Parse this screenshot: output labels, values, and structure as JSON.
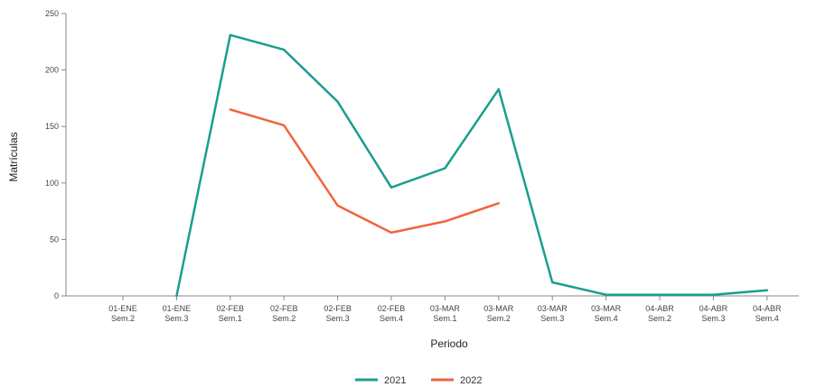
{
  "chart_data": {
    "type": "line",
    "xlabel": "Periodo",
    "ylabel": "Matrículas",
    "ylim": [
      0,
      250
    ],
    "yticks": [
      0,
      50,
      100,
      150,
      200,
      250
    ],
    "grid": false,
    "legend_position": "bottom-center",
    "categories": [
      [
        "01-ENE",
        "Sem.2"
      ],
      [
        "01-ENE",
        "Sem.3"
      ],
      [
        "02-FEB",
        "Sem.1"
      ],
      [
        "02-FEB",
        "Sem.2"
      ],
      [
        "02-FEB",
        "Sem.3"
      ],
      [
        "02-FEB",
        "Sem.4"
      ],
      [
        "03-MAR",
        "Sem.1"
      ],
      [
        "03-MAR",
        "Sem.2"
      ],
      [
        "03-MAR",
        "Sem.3"
      ],
      [
        "03-MAR",
        "Sem.4"
      ],
      [
        "04-ABR",
        "Sem.2"
      ],
      [
        "04-ABR",
        "Sem.3"
      ],
      [
        "04-ABR",
        "Sem.4"
      ]
    ],
    "series": [
      {
        "name": "2021",
        "color": "#1a9e8f",
        "values": [
          null,
          0,
          231,
          218,
          172,
          96,
          113,
          183,
          12,
          1,
          1,
          1,
          5
        ]
      },
      {
        "name": "2022",
        "color": "#f0653a",
        "values": [
          null,
          null,
          165,
          151,
          80,
          56,
          66,
          82,
          null,
          null,
          null,
          null,
          null
        ]
      }
    ]
  }
}
